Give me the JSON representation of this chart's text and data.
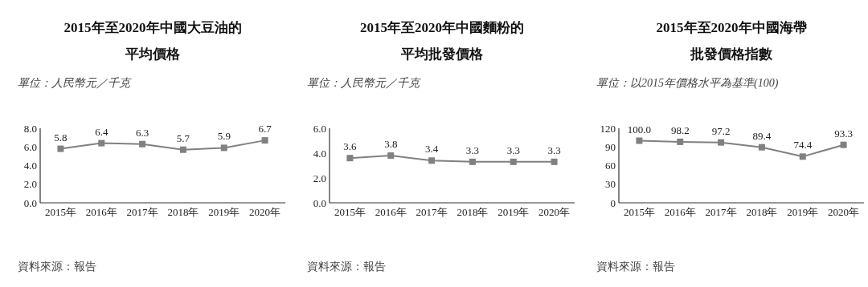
{
  "chart_data": [
    {
      "type": "line",
      "title": "2015年至2020年中國大豆油的平均價格",
      "subtitle": "單位：人民幣元／千克",
      "categories": [
        "2015年",
        "2016年",
        "2017年",
        "2018年",
        "2019年",
        "2020年"
      ],
      "series": [
        {
          "color": "#808080",
          "values": [
            5.8,
            6.4,
            6.3,
            5.7,
            5.9,
            6.7
          ]
        }
      ],
      "ylim": [
        0,
        8
      ],
      "yticks": [
        {
          "value": 0,
          "label": "0.0"
        },
        {
          "value": 2,
          "label": "2.0"
        },
        {
          "value": 4,
          "label": "4.0"
        },
        {
          "value": 6,
          "label": "6.0"
        },
        {
          "value": 8,
          "label": "8.0"
        }
      ],
      "marker": "square",
      "data_labels": true,
      "grid": false,
      "annotations": [
        "資料來源：報告"
      ]
    },
    {
      "type": "line",
      "title": "2015年至2020年中國麵粉的平均批發價格",
      "subtitle": "單位：人民幣元／千克",
      "categories": [
        "2015年",
        "2016年",
        "2017年",
        "2018年",
        "2019年",
        "2020年"
      ],
      "series": [
        {
          "color": "#808080",
          "values": [
            3.6,
            3.8,
            3.4,
            3.3,
            3.3,
            3.3
          ]
        }
      ],
      "ylim": [
        0,
        6
      ],
      "yticks": [
        {
          "value": 0,
          "label": "0.0"
        },
        {
          "value": 2,
          "label": "2.0"
        },
        {
          "value": 4,
          "label": "4.0"
        },
        {
          "value": 6,
          "label": "6.0"
        }
      ],
      "marker": "square",
      "data_labels": true,
      "grid": false,
      "annotations": [
        "資料來源：報告"
      ]
    },
    {
      "type": "line",
      "title": "2015年至2020年中國海帶批發價格指數",
      "subtitle": "單位：以2015年價格水平為基準(100)",
      "categories": [
        "2015年",
        "2016年",
        "2017年",
        "2018年",
        "2019年",
        "2020年"
      ],
      "series": [
        {
          "color": "#808080",
          "values": [
            100.0,
            98.2,
            97.2,
            89.4,
            74.4,
            93.3
          ],
          "value_labels": [
            "100.0",
            "98.2",
            "97.2",
            "89.4",
            "74.4",
            "93.3"
          ]
        }
      ],
      "ylim": [
        0,
        120
      ],
      "yticks": [
        0,
        30,
        60,
        90,
        120
      ],
      "marker": "square",
      "grid": false,
      "annotations": [
        "資料來源：報告"
      ]
    }
  ]
}
